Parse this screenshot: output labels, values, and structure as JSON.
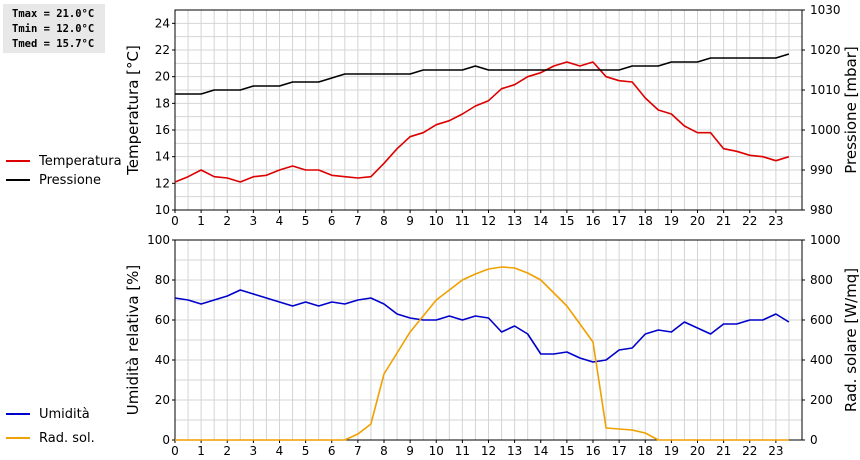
{
  "stats": {
    "tmax": "Tmax = 21.0°C",
    "tmin": "Tmin = 12.0°C",
    "tmed": "Tmed = 15.7°C"
  },
  "chart_data": [
    {
      "type": "line",
      "x_ticks": [
        0,
        1,
        2,
        3,
        4,
        5,
        6,
        7,
        8,
        9,
        10,
        11,
        12,
        13,
        14,
        15,
        16,
        17,
        18,
        19,
        20,
        21,
        22,
        23
      ],
      "xlim": [
        0,
        24
      ],
      "grid": true,
      "legend_position": "left",
      "ylabel_left": "Temperatura [°C]",
      "ylabel_right": "Pressione [mbar]",
      "ylim_left": [
        10,
        25
      ],
      "ylim_right": [
        980,
        1030
      ],
      "yticks_left": [
        10,
        12,
        14,
        16,
        18,
        20,
        22,
        24
      ],
      "yticks_right": [
        980,
        990,
        1000,
        1010,
        1020,
        1030
      ],
      "series": [
        {
          "name": "Temperatura",
          "axis": "left",
          "color": "#dd0000",
          "x": [
            0,
            0.5,
            1,
            1.5,
            2,
            2.5,
            3,
            3.5,
            4,
            4.5,
            5,
            5.5,
            6,
            6.5,
            7,
            7.5,
            8,
            8.5,
            9,
            9.5,
            10,
            10.5,
            11,
            11.5,
            12,
            12.5,
            13,
            13.5,
            14,
            14.5,
            15,
            15.5,
            16,
            16.5,
            17,
            17.5,
            18,
            18.5,
            19,
            19.5,
            20,
            20.5,
            21,
            21.5,
            22,
            22.5,
            23,
            23.5
          ],
          "y": [
            12.1,
            12.5,
            13.0,
            12.5,
            12.4,
            12.1,
            12.5,
            12.6,
            13.0,
            13.3,
            13.0,
            13.0,
            12.6,
            12.5,
            12.4,
            12.5,
            13.5,
            14.6,
            15.5,
            15.8,
            16.4,
            16.7,
            17.2,
            17.8,
            18.2,
            19.1,
            19.4,
            20.0,
            20.3,
            20.8,
            21.1,
            20.8,
            21.1,
            20.0,
            19.7,
            19.6,
            18.4,
            17.5,
            17.2,
            16.3,
            15.8,
            15.8,
            14.6,
            14.4,
            14.1,
            14.0,
            13.7,
            14.0
          ]
        },
        {
          "name": "Pressione",
          "axis": "right",
          "color": "#000000",
          "x": [
            0,
            1,
            1.5,
            2.5,
            3,
            4,
            4.5,
            5.5,
            6,
            6.5,
            7,
            8,
            8.5,
            9,
            9.5,
            10,
            11,
            11.5,
            12,
            13,
            14,
            15,
            16,
            16.5,
            17,
            17.5,
            18,
            18.5,
            19,
            19.5,
            20,
            20.5,
            21,
            22,
            23,
            23.5
          ],
          "y": [
            1009,
            1009,
            1010,
            1010,
            1011,
            1011,
            1012,
            1012,
            1013,
            1014,
            1014,
            1014,
            1014,
            1014,
            1015,
            1015,
            1015,
            1016,
            1015,
            1015,
            1015,
            1015,
            1015,
            1015,
            1015,
            1016,
            1016,
            1016,
            1017,
            1017,
            1017,
            1018,
            1018,
            1018,
            1018,
            1019
          ]
        }
      ]
    },
    {
      "type": "line",
      "x_ticks": [
        0,
        1,
        2,
        3,
        4,
        5,
        6,
        7,
        8,
        9,
        10,
        11,
        12,
        13,
        14,
        15,
        16,
        17,
        18,
        19,
        20,
        21,
        22,
        23
      ],
      "xlim": [
        0,
        24
      ],
      "grid": true,
      "legend_position": "left",
      "ylabel_left": "Umidità relativa [%]",
      "ylabel_right": "Rad. solare [W/mq]",
      "ylim_left": [
        0,
        100
      ],
      "ylim_right": [
        0,
        1000
      ],
      "yticks_left": [
        0,
        20,
        40,
        60,
        80,
        100
      ],
      "yticks_right": [
        0,
        200,
        400,
        600,
        800,
        1000
      ],
      "series": [
        {
          "name": "Umidità",
          "axis": "left",
          "color": "#0000cc",
          "x": [
            0,
            0.5,
            1,
            1.5,
            2,
            2.5,
            3,
            3.5,
            4,
            4.5,
            5,
            5.5,
            6,
            6.5,
            7,
            7.5,
            8,
            8.5,
            9,
            9.5,
            10,
            10.5,
            11,
            11.5,
            12,
            12.5,
            13,
            13.5,
            14,
            14.5,
            15,
            15.5,
            16,
            16.5,
            17,
            17.5,
            18,
            18.5,
            19,
            19.5,
            20,
            20.5,
            21,
            21.5,
            22,
            22.5,
            23,
            23.5
          ],
          "y": [
            71,
            70,
            68,
            70,
            72,
            75,
            73,
            71,
            69,
            67,
            69,
            67,
            69,
            68,
            70,
            71,
            68,
            63,
            61,
            60,
            60,
            62,
            60,
            62,
            61,
            54,
            57,
            53,
            43,
            43,
            44,
            41,
            39,
            40,
            45,
            46,
            53,
            55,
            54,
            59,
            56,
            53,
            58,
            58,
            60,
            60,
            63,
            59
          ]
        },
        {
          "name": "Rad. sol.",
          "axis": "right",
          "color": "#f0a000",
          "x": [
            0,
            6.5,
            7,
            7.5,
            8,
            9,
            10,
            11,
            11.5,
            12,
            12.5,
            13,
            13.5,
            14,
            15,
            16,
            16.5,
            17,
            17.5,
            18,
            18.5,
            19,
            23.5
          ],
          "y": [
            0,
            0,
            30,
            80,
            330,
            540,
            700,
            800,
            830,
            855,
            865,
            860,
            835,
            800,
            670,
            490,
            60,
            55,
            50,
            35,
            0,
            0,
            0
          ]
        }
      ]
    }
  ]
}
